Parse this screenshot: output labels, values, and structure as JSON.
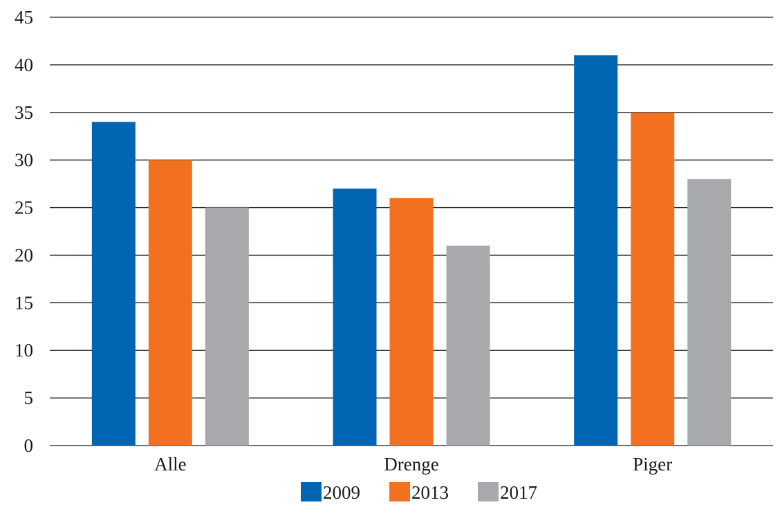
{
  "chart_data": {
    "type": "bar",
    "title": "",
    "xlabel": "",
    "ylabel": "",
    "categories": [
      "Alle",
      "Drenge",
      "Piger"
    ],
    "series": [
      {
        "name": "2009",
        "color": "#0066b3",
        "values": [
          34,
          27,
          41
        ]
      },
      {
        "name": "2013",
        "color": "#f37021",
        "values": [
          30,
          26,
          35
        ]
      },
      {
        "name": "2017",
        "color": "#a7a9ac",
        "values": [
          25,
          21,
          28
        ]
      }
    ],
    "ylim": [
      0,
      45
    ],
    "yticks": [
      0,
      5,
      10,
      15,
      20,
      25,
      30,
      35,
      40,
      45
    ],
    "grid": true,
    "legend": "bottom-center"
  }
}
